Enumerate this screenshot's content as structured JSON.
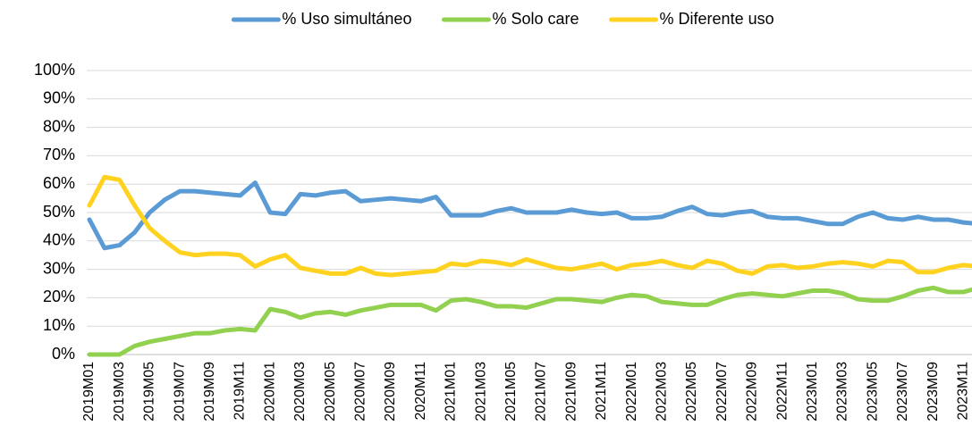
{
  "chart_data": {
    "type": "line",
    "categories": [
      "2019M01",
      null,
      "2019M03",
      null,
      "2019M05",
      null,
      "2019M07",
      null,
      "2019M09",
      null,
      "2019M11",
      null,
      "2020M01",
      null,
      "2020M03",
      null,
      "2020M05",
      null,
      "2020M07",
      null,
      "2020M09",
      null,
      "2020M11",
      null,
      "2021M01",
      null,
      "2021M03",
      null,
      "2021M05",
      null,
      "2021M07",
      null,
      "2021M09",
      null,
      "2021M11",
      null,
      "2022M01",
      null,
      "2022M03",
      null,
      "2022M05",
      null,
      "2022M07",
      null,
      "2022M09",
      null,
      "2022M11",
      null,
      "2023M01",
      null,
      "2023M03",
      null,
      "2023M05",
      null,
      "2023M07",
      null,
      "2023M09",
      null,
      "2023M11",
      null
    ],
    "series": [
      {
        "name": "% Uso simultáneo",
        "color": "#5b9bd5",
        "values": [
          47.5,
          37.5,
          38.5,
          43,
          50,
          54.5,
          57.5,
          57.5,
          57,
          56.5,
          56,
          60.5,
          50,
          49.5,
          56.5,
          56,
          57,
          57.5,
          54,
          54.5,
          55,
          54.5,
          54,
          55.5,
          49,
          49,
          49,
          50.5,
          51.5,
          50,
          50,
          50,
          51,
          50,
          49.5,
          50,
          48,
          48,
          48.5,
          50.5,
          52,
          49.5,
          49,
          50,
          50.5,
          48.5,
          48,
          48,
          47,
          46,
          46,
          48.5,
          50,
          48,
          47.5,
          48.5,
          47.5,
          47.5,
          46.5,
          46
        ]
      },
      {
        "name": "% Solo care",
        "color": "#92d050",
        "values": [
          0,
          0,
          0,
          3,
          4.5,
          5.5,
          6.5,
          7.5,
          7.5,
          8.5,
          9,
          8.5,
          16,
          15,
          13,
          14.5,
          15,
          14,
          15.5,
          16.5,
          17.5,
          17.5,
          17.5,
          15.5,
          19,
          19.5,
          18.5,
          17,
          17,
          16.5,
          18,
          19.5,
          19.5,
          19,
          18.5,
          20,
          21,
          20.5,
          18.5,
          18,
          17.5,
          17.5,
          19.5,
          21,
          21.5,
          21,
          20.5,
          21.5,
          22.5,
          22.5,
          21.5,
          19.5,
          19,
          19,
          20.5,
          22.5,
          23.5,
          22,
          22,
          23.5
        ]
      },
      {
        "name": "% Diferente uso",
        "color": "#ffd21f",
        "values": [
          52.5,
          62.5,
          61.5,
          52.5,
          44.5,
          40,
          36,
          35,
          35.5,
          35.5,
          35,
          31,
          33.5,
          35,
          30.5,
          29.5,
          28.5,
          28.5,
          30.5,
          28.5,
          28,
          28.5,
          29,
          29.5,
          32,
          31.5,
          33,
          32.5,
          31.5,
          33.5,
          32,
          30.5,
          30,
          31,
          32,
          30,
          31.5,
          32,
          33,
          31.5,
          30.5,
          33,
          32,
          29.5,
          28.5,
          31,
          31.5,
          30.5,
          31,
          32,
          32.5,
          32,
          31,
          33,
          32.5,
          29,
          29,
          30.5,
          31.5,
          31
        ]
      }
    ],
    "ylim": [
      0,
      100
    ],
    "yticks": [
      {
        "value": 0,
        "label": "0%"
      },
      {
        "value": 10,
        "label": "10%"
      },
      {
        "value": 20,
        "label": "20%"
      },
      {
        "value": 30,
        "label": "30%"
      },
      {
        "value": 40,
        "label": "40%"
      },
      {
        "value": 50,
        "label": "50%"
      },
      {
        "value": 60,
        "label": "60%"
      },
      {
        "value": 70,
        "label": "70%"
      },
      {
        "value": 80,
        "label": "80%"
      },
      {
        "value": 90,
        "label": "90%"
      },
      {
        "value": 100,
        "label": "100%"
      }
    ],
    "grid": true,
    "legend": "top"
  }
}
